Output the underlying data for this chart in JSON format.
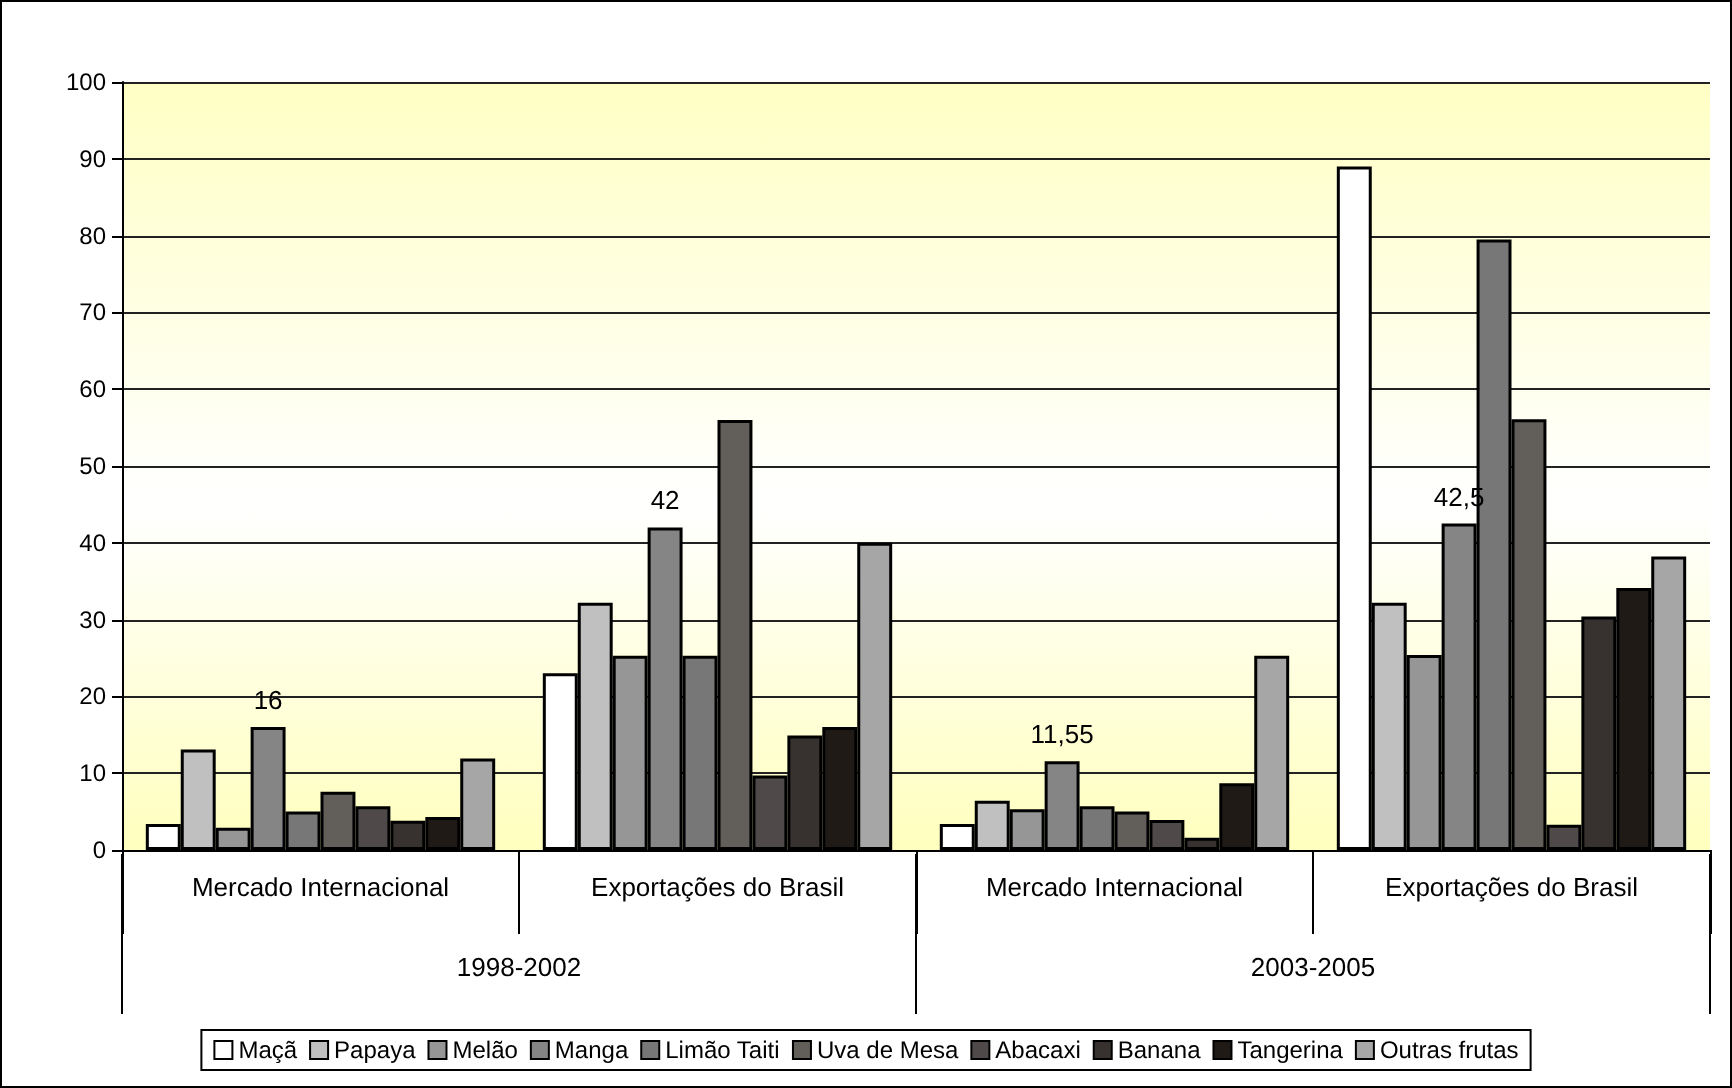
{
  "chart_data": {
    "type": "bar",
    "categories": [
      "Mercado Internacional",
      "Exportações do Brasil",
      "Mercado Internacional",
      "Exportações do Brasil"
    ],
    "annotations": [
      "1998-2002",
      "2003-2005"
    ],
    "series": [
      {
        "name": "Maçã",
        "color": "#ffffff",
        "values": [
          3.4,
          23,
          3.4,
          89
        ]
      },
      {
        "name": "Papaya",
        "color": "#c0c0c0",
        "values": [
          13.1,
          32.2,
          6.4,
          32.2
        ]
      },
      {
        "name": "Melão",
        "color": "#969696",
        "values": [
          2.9,
          25.3,
          5.3,
          25.4
        ]
      },
      {
        "name": "Manga",
        "color": "#858585",
        "values": [
          16,
          42,
          11.55,
          42.5
        ],
        "value_labels": [
          "16",
          "42",
          "11,55",
          "42,5"
        ]
      },
      {
        "name": "Limão Taiti",
        "color": "#777777",
        "values": [
          5,
          25.3,
          5.7,
          79.5
        ]
      },
      {
        "name": "Uva de Mesa",
        "color": "#625e5a",
        "values": [
          7.6,
          56,
          5,
          56.1
        ]
      },
      {
        "name": "Abacaxi",
        "color": "#4f4949",
        "values": [
          5.7,
          9.7,
          3.9,
          3.3
        ]
      },
      {
        "name": "Banana",
        "color": "#37322f",
        "values": [
          3.8,
          14.9,
          1.6,
          30.4
        ]
      },
      {
        "name": "Tangerina",
        "color": "#1f1a16",
        "values": [
          4.3,
          16,
          8.7,
          34.1
        ]
      },
      {
        "name": "Outras frutas",
        "color": "#a6a6a6",
        "values": [
          11.9,
          40,
          25.3,
          38.2
        ]
      }
    ],
    "ylim": [
      0,
      100
    ],
    "yticks": [
      0,
      10,
      20,
      30,
      40,
      50,
      60,
      70,
      80,
      90,
      100
    ],
    "grid": "y",
    "legend": "bottom"
  }
}
